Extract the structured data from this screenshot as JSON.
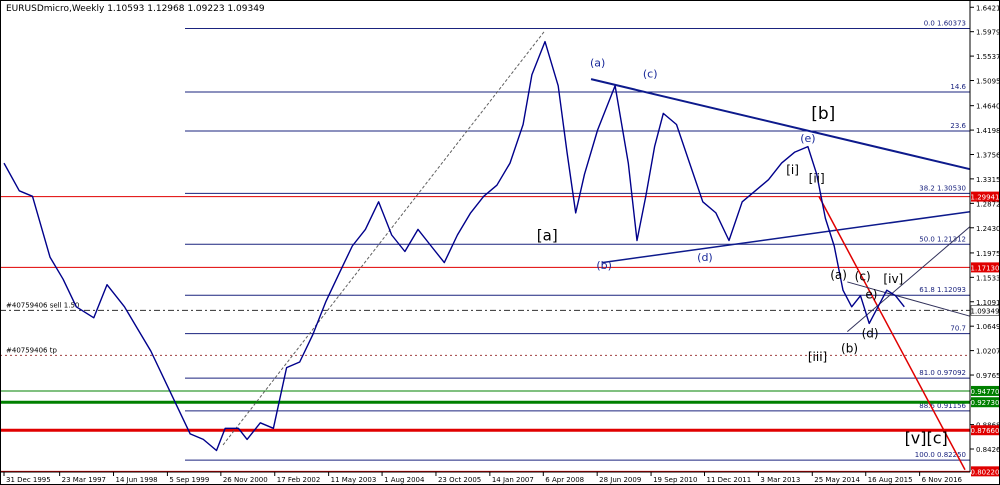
{
  "chart_data": {
    "type": "line",
    "header": "EURUSDmicro,Weekly  1.10593 1.12968 1.09223 1.09349",
    "ylim": [
      0.801,
      1.648
    ],
    "xlim": [
      1995.95,
      2018.0
    ],
    "y_ticks": [
      "1.64210",
      "1.59790",
      "1.55370",
      "1.50950",
      "1.46400",
      "1.41980",
      "1.37560",
      "1.33150",
      "1.28720",
      "1.24300",
      "1.19750",
      "1.15330",
      "1.10910",
      "1.06490",
      "1.02070",
      "0.97650",
      "0.93100",
      "0.88680",
      "0.84260",
      "0.79840"
    ],
    "x_ticks": [
      {
        "label": "31 Dec 1995",
        "v": 1995.95
      },
      {
        "label": "23 Mar 1997",
        "v": 1997.22
      },
      {
        "label": "14 Jun 1998",
        "v": 1998.45
      },
      {
        "label": "5 Sep 1999",
        "v": 1999.68
      },
      {
        "label": "26 Nov 2000",
        "v": 2000.9
      },
      {
        "label": "17 Feb 2002",
        "v": 2002.13
      },
      {
        "label": "11 May 2003",
        "v": 2003.36
      },
      {
        "label": "1 Aug 2004",
        "v": 2004.58
      },
      {
        "label": "23 Oct 2005",
        "v": 2005.81
      },
      {
        "label": "14 Jan 2007",
        "v": 2007.04
      },
      {
        "label": "6 Apr 2008",
        "v": 2008.26
      },
      {
        "label": "28 Jun 2009",
        "v": 2009.49
      },
      {
        "label": "19 Sep 2010",
        "v": 2010.72
      },
      {
        "label": "11 Dec 2011",
        "v": 2011.94
      },
      {
        "label": "3 Mar 2013",
        "v": 2013.17
      },
      {
        "label": "25 May 2014",
        "v": 2014.4
      },
      {
        "label": "16 Aug 2015",
        "v": 2015.62
      },
      {
        "label": "6 Nov 2016",
        "v": 2016.85
      }
    ],
    "series": [
      {
        "x": [
          1995.95,
          1996.3,
          1996.6,
          1997.0,
          1997.3,
          1997.6,
          1998.0,
          1998.3,
          1998.7,
          1999.0,
          1999.3,
          1999.6,
          1999.9,
          2000.2,
          2000.5,
          2000.8,
          2001.0,
          2001.3,
          2001.5,
          2001.8,
          2002.1,
          2002.4,
          2002.7,
          2003.0,
          2003.3,
          2003.6,
          2003.9,
          2004.2,
          2004.5,
          2004.8,
          2005.1,
          2005.4,
          2005.7,
          2006.0,
          2006.3,
          2006.6,
          2006.9,
          2007.2,
          2007.5,
          2007.8,
          2008.0,
          2008.3,
          2008.6,
          2008.8,
          2009.0,
          2009.2,
          2009.5,
          2009.9,
          2010.2,
          2010.4,
          2010.6,
          2010.8,
          2011.0,
          2011.3,
          2011.6,
          2011.9,
          2012.2,
          2012.5,
          2012.8,
          2013.1,
          2013.4,
          2013.7,
          2014.0,
          2014.3,
          2014.5,
          2014.7,
          2014.9,
          2015.1,
          2015.3,
          2015.5,
          2015.7,
          2015.9,
          2016.1,
          2016.3,
          2016.5
        ],
        "y": [
          1.36,
          1.31,
          1.3,
          1.19,
          1.15,
          1.1,
          1.08,
          1.14,
          1.1,
          1.06,
          1.02,
          0.97,
          0.92,
          0.87,
          0.86,
          0.84,
          0.88,
          0.88,
          0.86,
          0.89,
          0.88,
          0.99,
          1.0,
          1.05,
          1.11,
          1.16,
          1.21,
          1.24,
          1.29,
          1.23,
          1.2,
          1.24,
          1.21,
          1.18,
          1.23,
          1.27,
          1.3,
          1.32,
          1.36,
          1.43,
          1.52,
          1.58,
          1.5,
          1.38,
          1.27,
          1.34,
          1.42,
          1.5,
          1.36,
          1.22,
          1.3,
          1.39,
          1.45,
          1.43,
          1.36,
          1.29,
          1.27,
          1.22,
          1.29,
          1.31,
          1.33,
          1.36,
          1.38,
          1.39,
          1.34,
          1.26,
          1.21,
          1.13,
          1.1,
          1.12,
          1.07,
          1.1,
          1.13,
          1.12,
          1.1
        ]
      }
    ],
    "fib_levels": [
      {
        "label": "0.0 1.60373",
        "y": 1.60373
      },
      {
        "label": "14.6",
        "y": 1.4888
      },
      {
        "label": "23.6",
        "y": 1.4181
      },
      {
        "label": "38.2 1.30530",
        "y": 1.3053
      },
      {
        "label": "50.0 1.21312",
        "y": 1.21312
      },
      {
        "label": "61.8 1.12093",
        "y": 1.12093
      },
      {
        "label": "70.7",
        "y": 1.0514
      },
      {
        "label": "81.0 0.97092",
        "y": 0.97092
      },
      {
        "label": "88.6 0.91156",
        "y": 0.91156
      },
      {
        "label": "100.0 0.82250",
        "y": 0.8225
      }
    ],
    "price_labels": [
      {
        "text": "1.29941",
        "y": 1.29941,
        "bg": "#e00000",
        "fg": "#ffffff"
      },
      {
        "text": "1.17130",
        "y": 1.1713,
        "bg": "#e00000",
        "fg": "#ffffff"
      },
      {
        "text": "1.09349",
        "y": 1.09349,
        "bg": "#ffffff",
        "fg": "#000000"
      },
      {
        "text": "0.94770",
        "y": 0.9477,
        "bg": "#008000",
        "fg": "#ffffff"
      },
      {
        "text": "0.92730",
        "y": 0.9273,
        "bg": "#008000",
        "fg": "#ffffff"
      },
      {
        "text": "0.87660",
        "y": 0.8766,
        "bg": "#e00000",
        "fg": "#ffffff"
      },
      {
        "text": "0.80220",
        "y": 0.8022,
        "bg": "#e00000",
        "fg": "#ffffff"
      }
    ],
    "order_lines": [
      {
        "label": "#40759406 sell 1.50",
        "y": 1.0935
      },
      {
        "label": "#40759406 tp",
        "y": 1.012
      }
    ],
    "wave_labels": [
      {
        "text": "[a]",
        "x": 2008.35,
        "y": 1.22,
        "size": 15,
        "color": "#000000"
      },
      {
        "text": "(a)",
        "x": 2009.5,
        "y": 1.535,
        "size": 11,
        "color": "#1a2a9a"
      },
      {
        "text": "(c)",
        "x": 2010.7,
        "y": 1.515,
        "size": 11,
        "color": "#1a2a9a"
      },
      {
        "text": "(b)",
        "x": 2009.65,
        "y": 1.168,
        "size": 11,
        "color": "#1a2a9a"
      },
      {
        "text": "(d)",
        "x": 2011.95,
        "y": 1.183,
        "size": 11,
        "color": "#1a2a9a"
      },
      {
        "text": "[b]",
        "x": 2014.65,
        "y": 1.44,
        "size": 17,
        "color": "#000000"
      },
      {
        "text": "(e)",
        "x": 2014.3,
        "y": 1.398,
        "size": 11,
        "color": "#1a2a9a"
      },
      {
        "text": "[i]",
        "x": 2013.95,
        "y": 1.34,
        "size": 12,
        "color": "#000000"
      },
      {
        "text": "[ii]",
        "x": 2014.5,
        "y": 1.325,
        "size": 12,
        "color": "#000000"
      },
      {
        "text": "[iii]",
        "x": 2014.52,
        "y": 1.002,
        "size": 12,
        "color": "#000000"
      },
      {
        "text": "(a)",
        "x": 2015.0,
        "y": 1.15,
        "size": 12,
        "color": "#000000"
      },
      {
        "text": "(c)",
        "x": 2015.55,
        "y": 1.148,
        "size": 12,
        "color": "#000000"
      },
      {
        "text": "(b)",
        "x": 2015.25,
        "y": 1.017,
        "size": 12,
        "color": "#000000"
      },
      {
        "text": "e)",
        "x": 2015.75,
        "y": 1.115,
        "size": 12,
        "color": "#000000"
      },
      {
        "text": "(d)",
        "x": 2015.72,
        "y": 1.044,
        "size": 12,
        "color": "#000000"
      },
      {
        "text": "[iv]",
        "x": 2016.25,
        "y": 1.143,
        "size": 12,
        "color": "#000000"
      },
      {
        "text": "[v][c]",
        "x": 2017.0,
        "y": 0.853,
        "size": 16,
        "color": "#000000"
      }
    ],
    "grid": false,
    "colors": {
      "price": "#00008b",
      "fib": "#1a237e",
      "resistance": "#e00000",
      "support": "#008000",
      "trend": "#0d1a8c"
    }
  }
}
